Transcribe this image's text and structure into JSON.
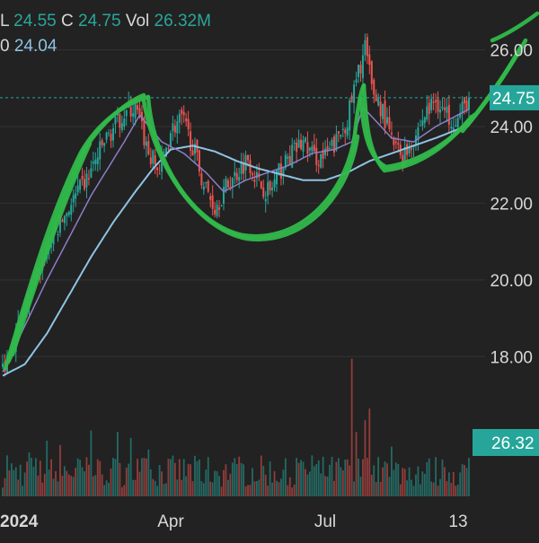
{
  "header": {
    "line1": [
      {
        "key": "L",
        "value": "24.55"
      },
      {
        "key": "C",
        "value": "24.75"
      },
      {
        "key": "Vol",
        "value": "26.32M"
      }
    ],
    "line2": {
      "key": "0",
      "value": "24.04"
    }
  },
  "colors": {
    "background": "#222222",
    "up": "#26a69a",
    "down": "#ef5350",
    "ma_fast": "#8b7fc8",
    "ma_slow": "#8fc3e3",
    "annotation": "#31b94b",
    "grid": "#333333",
    "price_line": "#26a69a"
  },
  "chart_data": {
    "type": "candlestick",
    "price_axis": {
      "ticks": [
        "18.00",
        "20.00",
        "22.00",
        "24.00",
        "26.00"
      ],
      "ylim": [
        17.0,
        27.3
      ]
    },
    "time_axis": {
      "ticks": [
        "2024",
        "Apr",
        "Jul",
        "13"
      ]
    },
    "last_price_label": "24.75",
    "last_price": 24.75,
    "volume_label": "26.32",
    "volume_max": 100,
    "last_volume": 26.32,
    "ma_fast_last": 24.45,
    "ma_slow_last": 24.04,
    "close_anchors": [
      [
        0,
        17.7
      ],
      [
        10,
        19.2
      ],
      [
        20,
        20.8
      ],
      [
        30,
        21.9
      ],
      [
        38,
        22.6
      ],
      [
        46,
        23.6
      ],
      [
        54,
        24.3
      ],
      [
        60,
        24.5
      ],
      [
        66,
        23.3
      ],
      [
        71,
        22.8
      ],
      [
        76,
        23.9
      ],
      [
        81,
        24.2
      ],
      [
        86,
        23.5
      ],
      [
        91,
        22.5
      ],
      [
        96,
        21.9
      ],
      [
        101,
        22.4
      ],
      [
        106,
        22.8
      ],
      [
        111,
        23.2
      ],
      [
        116,
        22.5
      ],
      [
        121,
        22.3
      ],
      [
        126,
        22.9
      ],
      [
        131,
        23.3
      ],
      [
        136,
        23.6
      ],
      [
        141,
        23.2
      ],
      [
        146,
        23.2
      ],
      [
        151,
        23.6
      ],
      [
        156,
        24.2
      ],
      [
        161,
        25.4
      ],
      [
        164,
        26.1
      ],
      [
        167,
        25.0
      ],
      [
        172,
        24.4
      ],
      [
        176,
        23.6
      ],
      [
        181,
        23.2
      ],
      [
        186,
        23.7
      ],
      [
        191,
        24.3
      ],
      [
        196,
        24.7
      ],
      [
        201,
        24.3
      ],
      [
        206,
        24.2
      ],
      [
        211,
        24.75
      ]
    ],
    "ma_fast_anchors": [
      [
        0,
        17.6
      ],
      [
        20,
        20.0
      ],
      [
        40,
        22.2
      ],
      [
        55,
        23.6
      ],
      [
        62,
        24.3
      ],
      [
        72,
        23.6
      ],
      [
        82,
        23.3
      ],
      [
        92,
        22.8
      ],
      [
        100,
        22.3
      ],
      [
        110,
        22.6
      ],
      [
        120,
        22.8
      ],
      [
        130,
        23.0
      ],
      [
        140,
        23.3
      ],
      [
        150,
        23.4
      ],
      [
        158,
        23.6
      ],
      [
        163,
        24.5
      ],
      [
        168,
        24.2
      ],
      [
        176,
        23.7
      ],
      [
        186,
        23.6
      ],
      [
        196,
        24.0
      ],
      [
        211,
        24.45
      ]
    ],
    "ma_slow_anchors": [
      [
        0,
        17.5
      ],
      [
        10,
        17.8
      ],
      [
        20,
        18.6
      ],
      [
        30,
        19.6
      ],
      [
        40,
        20.6
      ],
      [
        50,
        21.5
      ],
      [
        60,
        22.3
      ],
      [
        68,
        22.9
      ],
      [
        76,
        23.4
      ],
      [
        86,
        23.5
      ],
      [
        96,
        23.35
      ],
      [
        106,
        23.1
      ],
      [
        116,
        22.9
      ],
      [
        126,
        22.75
      ],
      [
        136,
        22.6
      ],
      [
        146,
        22.6
      ],
      [
        156,
        22.8
      ],
      [
        166,
        23.1
      ],
      [
        176,
        23.3
      ],
      [
        186,
        23.5
      ],
      [
        196,
        23.7
      ],
      [
        211,
        24.04
      ]
    ],
    "volume_spikes": [
      [
        2,
        28
      ],
      [
        12,
        30
      ],
      [
        20,
        38
      ],
      [
        26,
        35
      ],
      [
        40,
        45
      ],
      [
        52,
        44
      ],
      [
        58,
        40
      ],
      [
        66,
        32
      ],
      [
        88,
        24
      ],
      [
        106,
        22
      ],
      [
        128,
        26
      ],
      [
        140,
        28
      ],
      [
        158,
        94
      ],
      [
        160,
        44
      ],
      [
        164,
        52
      ],
      [
        166,
        60
      ],
      [
        176,
        34
      ],
      [
        200,
        20
      ]
    ],
    "bar_count": 212
  }
}
